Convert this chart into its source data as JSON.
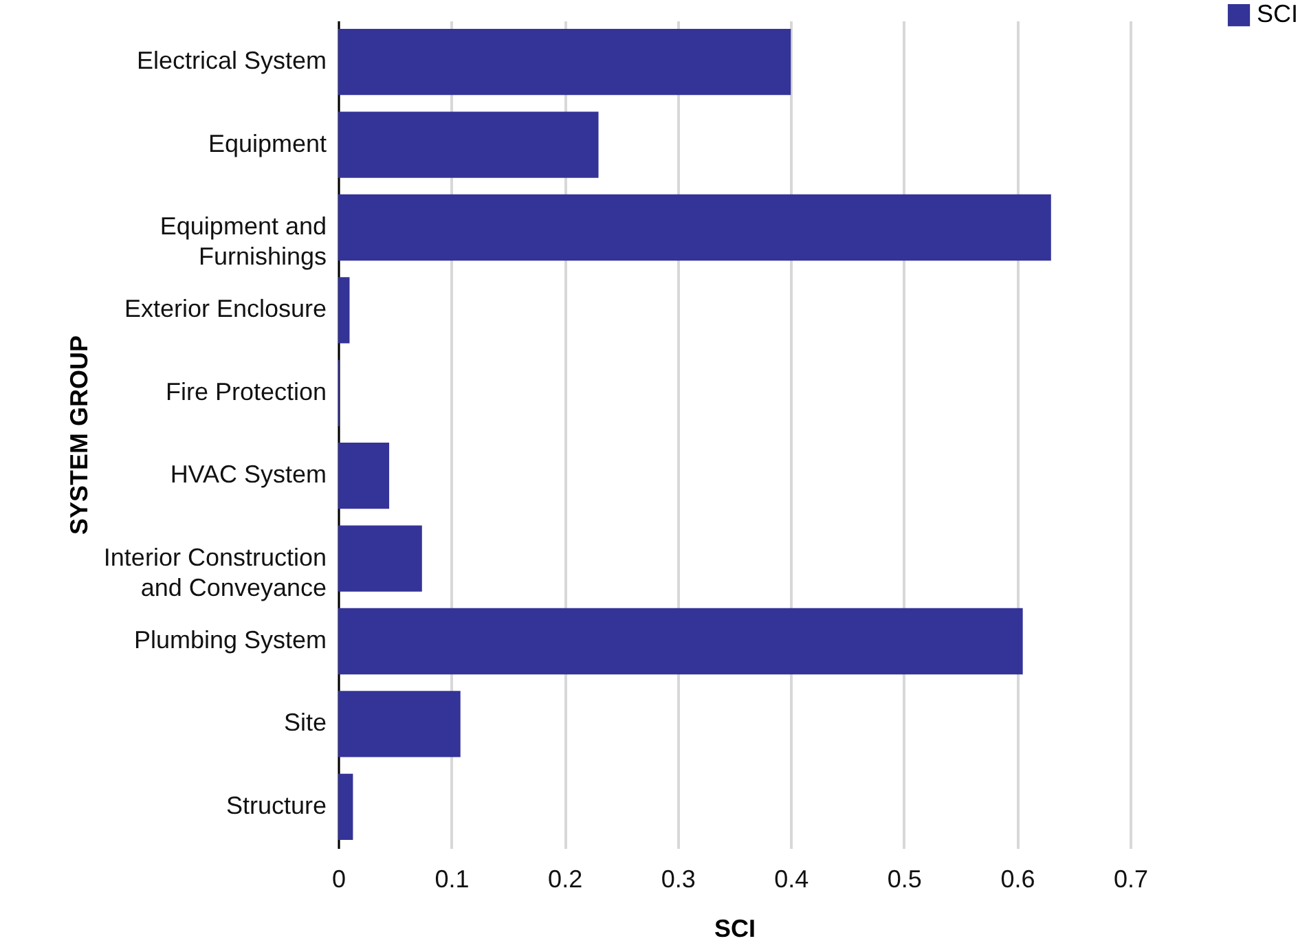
{
  "chart_data": {
    "type": "bar",
    "orientation": "horizontal",
    "xlabel": "SCI",
    "ylabel": "SYSTEM GROUP",
    "categories": [
      "Electrical System",
      "Equipment",
      "Equipment and Furnishings",
      "Exterior Enclosure",
      "Fire Protection",
      "HVAC System",
      "Interior Construction and Conveyance",
      "Plumbing System",
      "Site",
      "Structure"
    ],
    "series": [
      {
        "name": "SCI",
        "color": "#343397",
        "values": [
          0.4,
          0.23,
          0.63,
          0.01,
          0.001,
          0.045,
          0.074,
          0.605,
          0.108,
          0.013
        ]
      }
    ],
    "xlim": [
      0,
      0.7
    ],
    "xticks": [
      0,
      0.1,
      0.2,
      0.3,
      0.4,
      0.5,
      0.6,
      0.7
    ],
    "grid": "x",
    "legend": "top right"
  }
}
